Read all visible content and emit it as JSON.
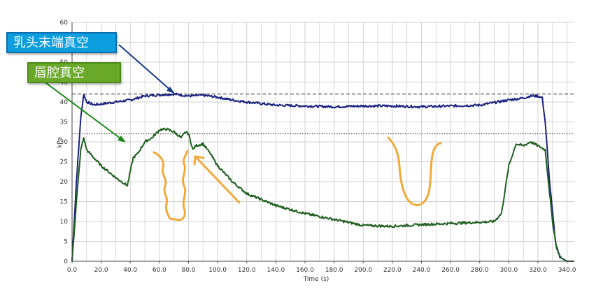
{
  "callouts": {
    "teat_end_vacuum": "乳头末端真空",
    "mouthpiece_chamber_vacuum": "唇腔真空"
  },
  "colors": {
    "teat_end_series": "#1a237e",
    "mouthpiece_series": "#1f5f1f",
    "annotation_orange": "#f2a93b",
    "callout_blue": "#0d9ee0",
    "callout_green": "#6aa829",
    "grid": "#c8c8c8"
  },
  "chart_data": {
    "type": "line",
    "title": "",
    "xlabel": "Time (s)",
    "ylabel": "kPa",
    "xlim": [
      0,
      345
    ],
    "ylim": [
      0,
      60
    ],
    "grid": true,
    "x_ticks": [
      "0.0",
      "20.0",
      "40.0",
      "60.0",
      "80.0",
      "100.0",
      "120.0",
      "140.0",
      "160.0",
      "180.0",
      "200.0",
      "220.0",
      "240.0",
      "260.0",
      "280.0",
      "300.0",
      "320.0",
      "340.0"
    ],
    "y_ticks": [
      "0",
      "5",
      "10",
      "15",
      "20",
      "25",
      "30",
      "35",
      "40",
      "45",
      "50",
      "55",
      "60"
    ],
    "reference_lines": [
      {
        "style": "dashed",
        "y": 42
      },
      {
        "style": "dotted",
        "y": 32
      }
    ],
    "series": [
      {
        "name": "乳头末端真空",
        "x": [
          0,
          3,
          6,
          8,
          10,
          15,
          20,
          30,
          40,
          50,
          60,
          70,
          80,
          90,
          100,
          110,
          120,
          140,
          160,
          180,
          200,
          220,
          240,
          260,
          280,
          300,
          310,
          315,
          320,
          323,
          325,
          328,
          332,
          335,
          340,
          345
        ],
        "y": [
          0,
          20,
          36,
          42,
          40,
          39.3,
          39.5,
          40,
          40.5,
          41.5,
          41.8,
          42,
          41.5,
          41.7,
          41.2,
          40.5,
          40,
          39.2,
          39,
          38.8,
          39,
          39,
          38.8,
          39,
          39.2,
          40.5,
          41,
          41.5,
          41.5,
          41,
          35,
          20,
          5,
          1,
          0,
          0
        ]
      },
      {
        "name": "唇腔真空",
        "x": [
          0,
          3,
          6,
          8,
          10,
          15,
          20,
          30,
          38,
          42,
          45,
          50,
          55,
          60,
          65,
          70,
          75,
          78,
          80,
          83,
          85,
          90,
          95,
          100,
          110,
          120,
          140,
          160,
          180,
          200,
          220,
          240,
          260,
          280,
          290,
          295,
          300,
          305,
          310,
          315,
          320,
          325,
          330,
          333,
          336,
          340,
          345
        ],
        "y": [
          0,
          15,
          28,
          31,
          28,
          26,
          24,
          21,
          19,
          26,
          27,
          30,
          31,
          33,
          33.2,
          32.5,
          31,
          32.5,
          32,
          28,
          29,
          29.5,
          27,
          24,
          20,
          17,
          14,
          12,
          10.5,
          9,
          8.8,
          9.2,
          9.5,
          9.8,
          10,
          12,
          24,
          29.5,
          29,
          30,
          29,
          28,
          10,
          3,
          0.8,
          0,
          0
        ]
      }
    ],
    "annotations": [
      {
        "type": "arrow",
        "label": "乳头末端真空",
        "points_to": {
          "x": 75,
          "y": 41.8
        }
      },
      {
        "type": "arrow",
        "label": "唇腔真空",
        "points_to": {
          "x": 37,
          "y": 30.5
        }
      }
    ]
  }
}
